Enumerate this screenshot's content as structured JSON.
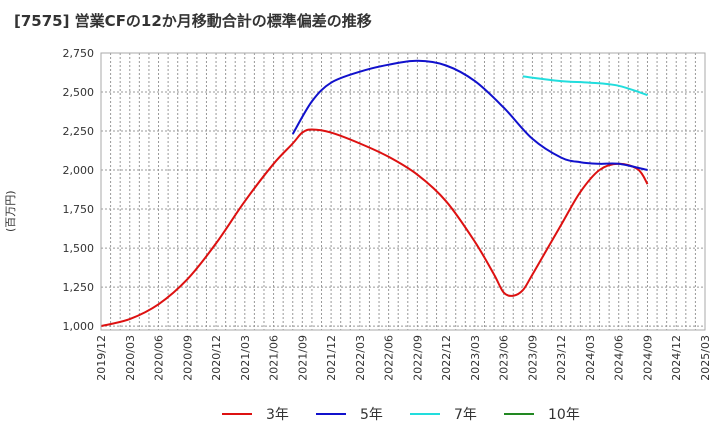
{
  "chart_data": {
    "type": "line",
    "title": "[7575]  営業CFの12か月移動合計の標準偏差の推移",
    "ylabel": "(百万円)",
    "xlabel": "",
    "ylim": [
      975,
      2750
    ],
    "yticks": [
      1000,
      1250,
      1500,
      1750,
      2000,
      2250,
      2500,
      2750
    ],
    "ytick_labels": [
      "1,000",
      "1,250",
      "1,500",
      "1,750",
      "2,000",
      "2,250",
      "2,500",
      "2,750"
    ],
    "xtick_labels": [
      "2019/12",
      "2020/03",
      "2020/06",
      "2020/09",
      "2020/12",
      "2021/03",
      "2021/06",
      "2021/09",
      "2021/12",
      "2022/03",
      "2022/06",
      "2022/09",
      "2022/12",
      "2023/03",
      "2023/06",
      "2023/09",
      "2023/12",
      "2024/03",
      "2024/06",
      "2024/09",
      "2024/12",
      "2025/03"
    ],
    "grid": true,
    "legend_position": "bottom",
    "series": [
      {
        "name": "3年",
        "color": "#dd1111",
        "x": [
          "2019/12",
          "2020/03",
          "2020/06",
          "2020/09",
          "2020/12",
          "2021/03",
          "2021/06",
          "2021/08",
          "2021/09",
          "2021/10",
          "2021/12",
          "2022/03",
          "2022/06",
          "2022/09",
          "2022/12",
          "2023/03",
          "2023/05",
          "2023/06",
          "2023/07",
          "2023/08",
          "2023/09",
          "2023/12",
          "2024/02",
          "2024/04",
          "2024/06",
          "2024/08",
          "2024/09"
        ],
        "values": [
          1000,
          1045,
          1140,
          1300,
          1530,
          1800,
          2040,
          2170,
          2240,
          2260,
          2240,
          2170,
          2085,
          1970,
          1800,
          1540,
          1330,
          1215,
          1195,
          1230,
          1330,
          1650,
          1860,
          2000,
          2040,
          2005,
          1910
        ]
      },
      {
        "name": "5年",
        "color": "#1111cc",
        "x": [
          "2021/08",
          "2021/10",
          "2021/12",
          "2022/03",
          "2022/06",
          "2022/09",
          "2022/12",
          "2023/03",
          "2023/06",
          "2023/09",
          "2023/12",
          "2024/02",
          "2024/04",
          "2024/06",
          "2024/09"
        ],
        "values": [
          2230,
          2440,
          2560,
          2630,
          2675,
          2700,
          2670,
          2570,
          2400,
          2200,
          2080,
          2050,
          2040,
          2040,
          2000
        ]
      },
      {
        "name": "7年",
        "color": "#22dddd",
        "x": [
          "2023/08",
          "2023/12",
          "2024/03",
          "2024/06",
          "2024/09"
        ],
        "values": [
          2600,
          2570,
          2560,
          2540,
          2480
        ]
      },
      {
        "name": "10年",
        "color": "#228822",
        "x": [],
        "values": []
      }
    ]
  }
}
